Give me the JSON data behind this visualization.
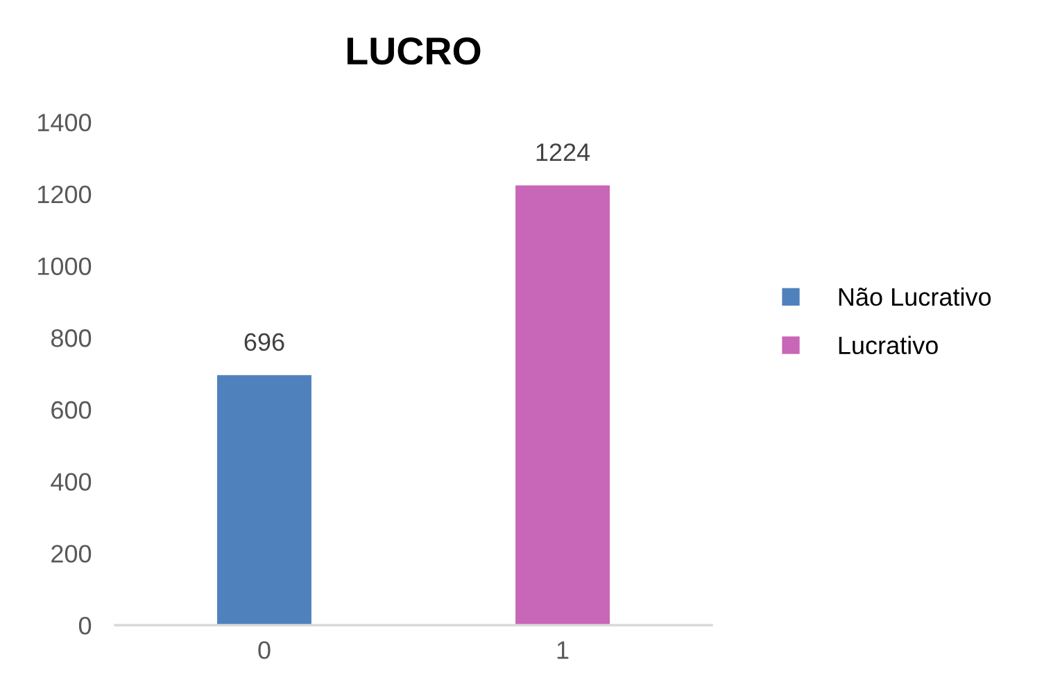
{
  "chart_data": {
    "type": "bar",
    "title": "LUCRO",
    "categories": [
      "0",
      "1"
    ],
    "series": [
      {
        "name": "Não Lucrativo",
        "color": "#4f81bd",
        "values": [
          696,
          null
        ]
      },
      {
        "name": "Lucrativo",
        "color": "#c866b8",
        "values": [
          null,
          1224
        ]
      }
    ],
    "ylim": [
      0,
      1400
    ],
    "yticks": [
      0,
      200,
      400,
      600,
      800,
      1000,
      1200,
      1400
    ],
    "grid": false,
    "legend": "right",
    "data_labels": true
  }
}
